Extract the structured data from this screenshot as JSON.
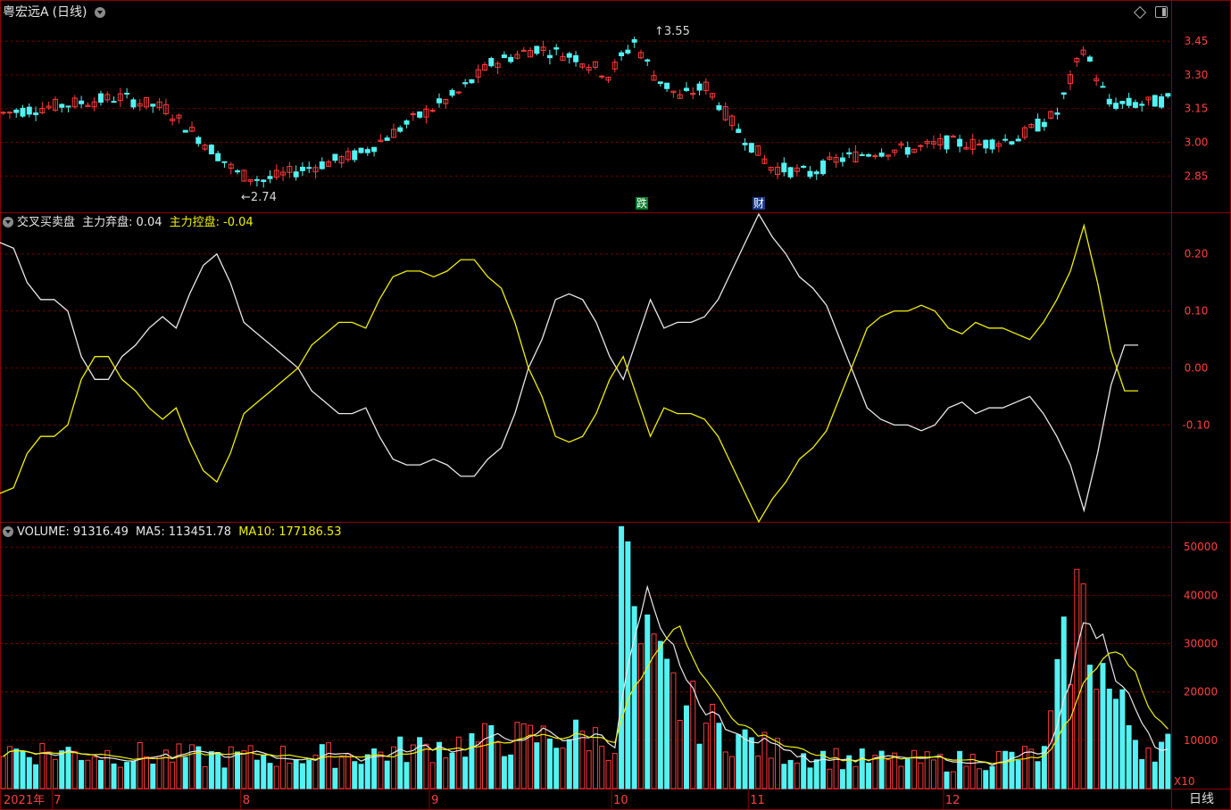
{
  "title": "粤宏远A",
  "period_label": "(日线)",
  "panels": {
    "main": {
      "max_label": "3.55",
      "min_label": "2.74",
      "event_tags": [
        "跌",
        "财"
      ]
    },
    "indicator": {
      "name": "交叉买卖盘",
      "series1_label": "主力弃盘:",
      "series1_value": "0.04",
      "series2_label": "主力控盘:",
      "series2_value": "-0.04"
    },
    "volume": {
      "name": "VOLUME:",
      "value": "91316.49",
      "ma5_label": "MA5:",
      "ma5_value": "113451.78",
      "ma10_label": "MA10:",
      "ma10_value": "177186.53",
      "unit": "X10"
    }
  },
  "footer": {
    "period": "日线"
  },
  "colors": {
    "up": "#ff3b3b",
    "down": "#54f2f2",
    "grid": "#8b0000",
    "white_line": "#e8e8e8",
    "yellow_line": "#f0f000"
  },
  "icons": [
    "chevron-down-icon",
    "diamond-icon",
    "window-icon"
  ],
  "chart_data": [
    {
      "type": "candlestick",
      "y_ticks": [
        2.85,
        3.0,
        3.15,
        3.3,
        3.45
      ],
      "ylim": [
        2.72,
        3.57
      ],
      "x_ticks": [
        "2021年",
        "7",
        "8",
        "9",
        "10",
        "11",
        "12"
      ],
      "x_tick_index": [
        0,
        8,
        37,
        66,
        94,
        115,
        145
      ],
      "max_price": 3.55,
      "min_price": 2.74
    },
    {
      "type": "line",
      "series": [
        {
          "name": "主力弃盘"
        },
        {
          "name": "主力控盘"
        }
      ],
      "y_ticks": [
        -0.1,
        0.0,
        0.1,
        0.2
      ],
      "ylim": [
        -0.27,
        0.27
      ],
      "anchor_values": {
        "white": [
          0.22,
          0.21,
          0.15,
          0.12,
          0.12,
          0.1,
          0.02,
          -0.02,
          -0.02,
          0.02,
          0.04,
          0.07,
          0.09,
          0.07,
          0.13,
          0.18,
          0.2,
          0.15,
          0.08,
          0.06,
          0.04,
          0.02,
          0.0,
          -0.04,
          -0.06,
          -0.08,
          -0.08,
          -0.07,
          -0.12,
          -0.16,
          -0.17,
          -0.17,
          -0.16,
          -0.17,
          -0.19,
          -0.19,
          -0.16,
          -0.14,
          -0.08,
          0.0,
          0.05,
          0.12,
          0.13,
          0.12,
          0.08,
          0.02,
          -0.02,
          0.05,
          0.12,
          0.07,
          0.08,
          0.08,
          0.09,
          0.12,
          0.17,
          0.22,
          0.27,
          0.23,
          0.2,
          0.16,
          0.14,
          0.11,
          0.05,
          -0.01,
          -0.07,
          -0.09,
          -0.1,
          -0.1,
          -0.11,
          -0.1,
          -0.07,
          -0.06,
          -0.08,
          -0.07,
          -0.07,
          -0.06,
          -0.05,
          -0.08,
          -0.12,
          -0.17,
          -0.25,
          -0.15,
          -0.03,
          0.04,
          0.04
        ],
        "yellow": [
          -0.22,
          -0.21,
          -0.15,
          -0.12,
          -0.12,
          -0.1,
          -0.02,
          0.02,
          0.02,
          -0.02,
          -0.04,
          -0.07,
          -0.09,
          -0.07,
          -0.13,
          -0.18,
          -0.2,
          -0.15,
          -0.08,
          -0.06,
          -0.04,
          -0.02,
          0.0,
          0.04,
          0.06,
          0.08,
          0.08,
          0.07,
          0.12,
          0.16,
          0.17,
          0.17,
          0.16,
          0.17,
          0.19,
          0.19,
          0.16,
          0.14,
          0.08,
          0.0,
          -0.05,
          -0.12,
          -0.13,
          -0.12,
          -0.08,
          -0.02,
          0.02,
          -0.05,
          -0.12,
          -0.07,
          -0.08,
          -0.08,
          -0.09,
          -0.12,
          -0.17,
          -0.22,
          -0.27,
          -0.23,
          -0.2,
          -0.16,
          -0.14,
          -0.11,
          -0.05,
          0.01,
          0.07,
          0.09,
          0.1,
          0.1,
          0.11,
          0.1,
          0.07,
          0.06,
          0.08,
          0.07,
          0.07,
          0.06,
          0.05,
          0.08,
          0.12,
          0.17,
          0.25,
          0.15,
          0.03,
          -0.04,
          -0.04
        ]
      }
    },
    {
      "type": "bar",
      "series": [
        {
          "name": "VOLUME"
        },
        {
          "name": "MA5"
        },
        {
          "name": "MA10"
        }
      ],
      "y_ticks": [
        10000,
        20000,
        30000,
        40000,
        50000
      ],
      "ylim": [
        0,
        53000
      ]
    }
  ]
}
